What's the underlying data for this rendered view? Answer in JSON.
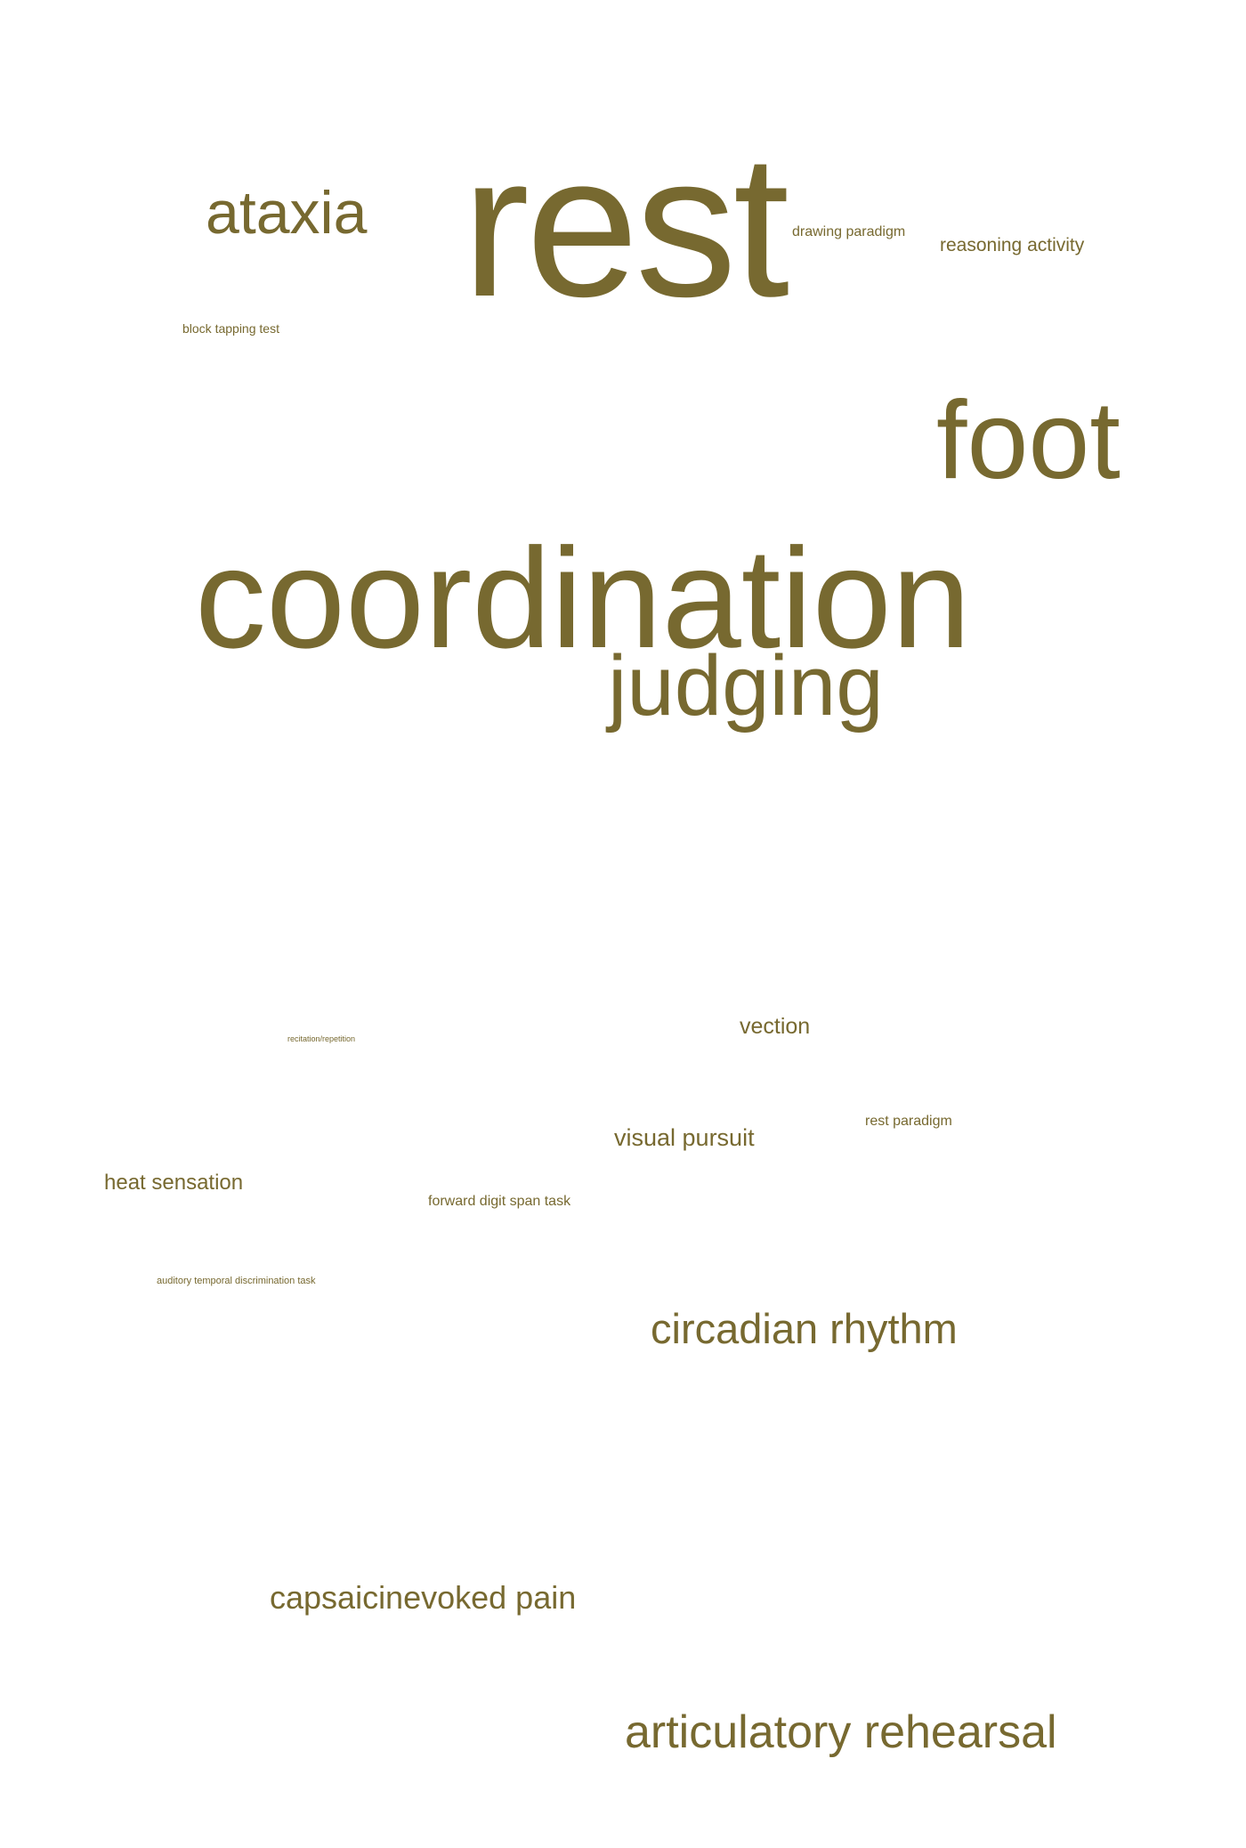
{
  "word_cloud": {
    "color": "#776930",
    "words": {
      "rest": "rest",
      "ataxia": "ataxia",
      "drawing_paradigm": "drawing paradigm",
      "reasoning_activity": "reasoning activity",
      "block_tapping_test": "block tapping test",
      "foot": "foot",
      "coordination": "coordination",
      "judging": "judging",
      "vection": "vection",
      "recitation_repetition": "recitation/repetition",
      "visual_pursuit": "visual pursuit",
      "rest_paradigm": "rest paradigm",
      "heat_sensation": "heat sensation",
      "forward_digit_span_task": "forward digit span task",
      "auditory_temporal_discrimination_task": "auditory temporal discrimination task",
      "circadian_rhythm": "circadian rhythm",
      "capsaicinevoked_pain": "capsaicinevoked pain",
      "articulatory_rehearsal": "articulatory rehearsal"
    }
  }
}
